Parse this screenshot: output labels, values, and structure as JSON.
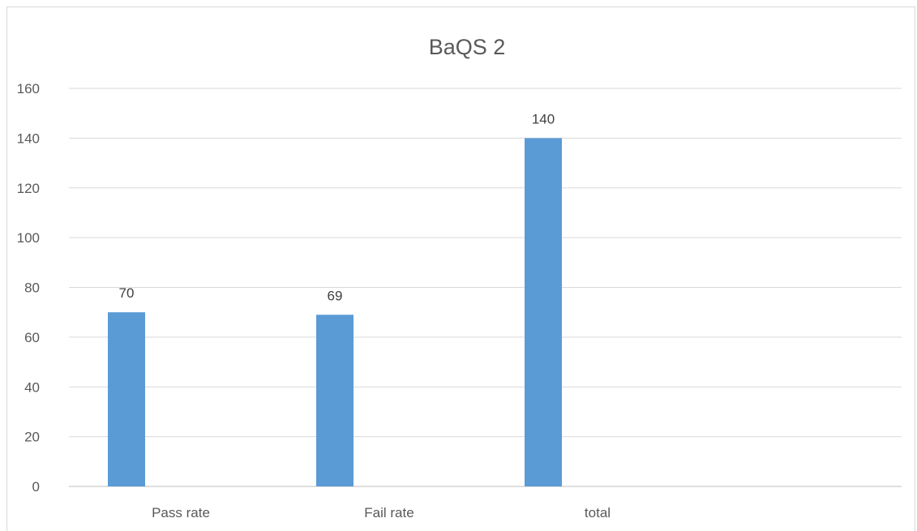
{
  "chart_data": {
    "type": "bar",
    "title": "BaQS 2",
    "categories": [
      "Pass rate",
      "Fail rate",
      "total"
    ],
    "values": [
      70,
      69,
      140
    ],
    "data_labels": [
      "70",
      "69",
      "140"
    ],
    "ylim": [
      0,
      160
    ],
    "yticks": [
      "0",
      "20",
      "40",
      "60",
      "80",
      "100",
      "120",
      "140",
      "160"
    ],
    "grid": true,
    "legend": "none",
    "bar_color": "#5b9bd5"
  }
}
